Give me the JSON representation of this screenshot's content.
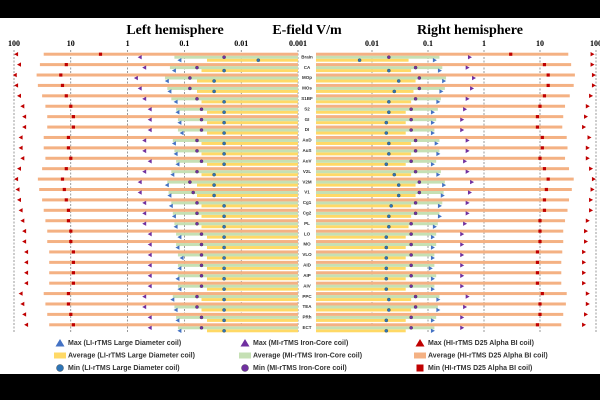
{
  "chart_data": {
    "type": "bar",
    "title_left": "Left hemisphere",
    "title_center": "E-field V/m",
    "title_right": "Right hemisphere",
    "log_scale": true,
    "grid": true,
    "xlim": [
      0.001,
      100
    ],
    "xticks_left": [
      100,
      10,
      1,
      0.1,
      0.01,
      0.001
    ],
    "xticks_right": [
      0.01,
      0.1,
      1,
      10,
      100
    ],
    "categories": [
      "Brain",
      "CA",
      "MOp",
      "MOs",
      "S1BF",
      "S2",
      "GI",
      "DI",
      "AuD",
      "AuS",
      "AuV",
      "V2L",
      "V2M",
      "V1",
      "Cg1",
      "Cg2",
      "PL",
      "LO",
      "MO",
      "VLO",
      "AID",
      "AIP",
      "AIV",
      "PPC",
      "TEA",
      "PRh",
      "ECT"
    ],
    "series": [
      {
        "name": "Max (LI-rTMS Large Diameter coil)",
        "color": "#4472c4",
        "marker": "triangle",
        "left": [
          0.12,
          0.15,
          0.2,
          0.18,
          0.14,
          0.13,
          0.12,
          0.11,
          0.15,
          0.14,
          0.13,
          0.16,
          0.2,
          0.18,
          0.17,
          0.15,
          0.14,
          0.12,
          0.13,
          0.11,
          0.12,
          0.13,
          0.12,
          0.16,
          0.14,
          0.13,
          0.12
        ],
        "right": [
          0.13,
          0.16,
          0.19,
          0.17,
          0.15,
          0.12,
          0.12,
          0.12,
          0.14,
          0.15,
          0.12,
          0.15,
          0.19,
          0.18,
          0.16,
          0.16,
          0.13,
          0.12,
          0.12,
          0.12,
          0.11,
          0.12,
          0.12,
          0.15,
          0.15,
          0.12,
          0.12
        ]
      },
      {
        "name": "Average (LI-rTMS Large Diameter coil)",
        "color": "#ffd966",
        "marker": "bar",
        "left": [
          0.04,
          0.05,
          0.06,
          0.06,
          0.05,
          0.04,
          0.04,
          0.04,
          0.05,
          0.05,
          0.04,
          0.05,
          0.06,
          0.06,
          0.05,
          0.05,
          0.05,
          0.04,
          0.04,
          0.04,
          0.04,
          0.04,
          0.04,
          0.05,
          0.05,
          0.04,
          0.04
        ],
        "right": [
          0.045,
          0.05,
          0.06,
          0.055,
          0.05,
          0.04,
          0.04,
          0.04,
          0.05,
          0.05,
          0.04,
          0.05,
          0.06,
          0.06,
          0.05,
          0.05,
          0.045,
          0.04,
          0.04,
          0.04,
          0.04,
          0.04,
          0.04,
          0.05,
          0.05,
          0.04,
          0.04
        ]
      },
      {
        "name": "Min (LI-rTMS Large Diameter coil)",
        "color": "#2e75b6",
        "marker": "circle",
        "left": [
          0.005,
          0.02,
          0.03,
          0.03,
          0.02,
          0.02,
          0.02,
          0.02,
          0.02,
          0.02,
          0.02,
          0.03,
          0.03,
          0.03,
          0.02,
          0.02,
          0.02,
          0.02,
          0.02,
          0.02,
          0.02,
          0.02,
          0.02,
          0.02,
          0.02,
          0.02,
          0.02
        ],
        "right": [
          0.006,
          0.02,
          0.03,
          0.025,
          0.02,
          0.02,
          0.018,
          0.018,
          0.02,
          0.02,
          0.018,
          0.025,
          0.03,
          0.03,
          0.022,
          0.02,
          0.02,
          0.018,
          0.018,
          0.018,
          0.018,
          0.018,
          0.018,
          0.02,
          0.02,
          0.018,
          0.018
        ]
      },
      {
        "name": "Max (MI-rTMS Iron-Core coil)",
        "color": "#7030a0",
        "marker": "triangle",
        "left": [
          0.6,
          0.5,
          0.7,
          0.6,
          0.5,
          0.4,
          0.4,
          0.4,
          0.5,
          0.5,
          0.4,
          0.5,
          0.6,
          0.6,
          0.5,
          0.5,
          0.5,
          0.4,
          0.4,
          0.4,
          0.4,
          0.4,
          0.4,
          0.5,
          0.5,
          0.4,
          0.4
        ],
        "right": [
          0.55,
          0.5,
          0.65,
          0.6,
          0.5,
          0.45,
          0.4,
          0.4,
          0.5,
          0.5,
          0.45,
          0.5,
          0.6,
          0.55,
          0.5,
          0.5,
          0.45,
          0.4,
          0.4,
          0.4,
          0.4,
          0.4,
          0.4,
          0.5,
          0.45,
          0.4,
          0.4
        ]
      },
      {
        "name": "Average (MI-rTMS Iron-Core coil)",
        "color": "#c5e0b4",
        "marker": "bar",
        "left": [
          0.15,
          0.18,
          0.22,
          0.2,
          0.17,
          0.14,
          0.13,
          0.13,
          0.16,
          0.15,
          0.14,
          0.17,
          0.2,
          0.19,
          0.17,
          0.16,
          0.15,
          0.14,
          0.14,
          0.13,
          0.13,
          0.13,
          0.13,
          0.16,
          0.15,
          0.14,
          0.13
        ],
        "right": [
          0.16,
          0.18,
          0.21,
          0.2,
          0.17,
          0.15,
          0.14,
          0.13,
          0.16,
          0.16,
          0.14,
          0.17,
          0.2,
          0.19,
          0.18,
          0.16,
          0.15,
          0.14,
          0.14,
          0.13,
          0.13,
          0.14,
          0.13,
          0.16,
          0.15,
          0.14,
          0.13
        ]
      },
      {
        "name": "Min (MI-rTMS Iron-Core coil)",
        "color": "#7030a0",
        "marker": "circle",
        "left": [
          0.02,
          0.06,
          0.08,
          0.08,
          0.06,
          0.05,
          0.05,
          0.05,
          0.06,
          0.06,
          0.05,
          0.06,
          0.08,
          0.07,
          0.06,
          0.06,
          0.06,
          0.05,
          0.05,
          0.05,
          0.05,
          0.05,
          0.05,
          0.06,
          0.06,
          0.05,
          0.05
        ],
        "right": [
          0.02,
          0.06,
          0.07,
          0.07,
          0.06,
          0.05,
          0.05,
          0.05,
          0.06,
          0.06,
          0.05,
          0.06,
          0.07,
          0.07,
          0.06,
          0.06,
          0.05,
          0.05,
          0.05,
          0.05,
          0.05,
          0.05,
          0.05,
          0.06,
          0.06,
          0.05,
          0.05
        ]
      },
      {
        "name": "Max (HI-rTMS D25 Alpha BI coil)",
        "color": "#c00000",
        "marker": "triangle",
        "left": [
          90,
          80,
          95,
          90,
          80,
          70,
          65,
          65,
          75,
          75,
          70,
          80,
          90,
          85,
          80,
          75,
          70,
          65,
          65,
          60,
          60,
          60,
          60,
          75,
          70,
          65,
          60
        ],
        "right": [
          85,
          85,
          90,
          90,
          80,
          70,
          65,
          60,
          75,
          70,
          70,
          80,
          90,
          85,
          80,
          80,
          70,
          65,
          65,
          60,
          60,
          60,
          60,
          70,
          70,
          65,
          60
        ]
      },
      {
        "name": "Average (HI-rTMS D25 Alpha BI coil)",
        "color": "#f4b183",
        "marker": "bar",
        "left": [
          30,
          35,
          40,
          38,
          32,
          28,
          26,
          26,
          30,
          30,
          28,
          32,
          38,
          36,
          32,
          30,
          28,
          26,
          26,
          24,
          24,
          24,
          24,
          30,
          28,
          26,
          24
        ],
        "right": [
          32,
          36,
          42,
          40,
          34,
          28,
          26,
          25,
          30,
          31,
          28,
          33,
          40,
          37,
          33,
          31,
          28,
          26,
          26,
          25,
          24,
          24,
          24,
          30,
          29,
          26,
          24
        ]
      },
      {
        "name": "Min (HI-rTMS D25 Alpha BI coil)",
        "color": "#c00000",
        "marker": "square",
        "left": [
          3,
          12,
          15,
          14,
          12,
          10,
          9,
          9,
          11,
          11,
          10,
          12,
          14,
          13,
          12,
          11,
          11,
          10,
          10,
          9,
          9,
          9,
          9,
          11,
          11,
          10,
          9
        ],
        "right": [
          3,
          12,
          14,
          14,
          12,
          10,
          9,
          9,
          11,
          11,
          10,
          12,
          14,
          13,
          12,
          12,
          10,
          10,
          10,
          9,
          9,
          9,
          9,
          11,
          10,
          10,
          9
        ]
      }
    ]
  }
}
